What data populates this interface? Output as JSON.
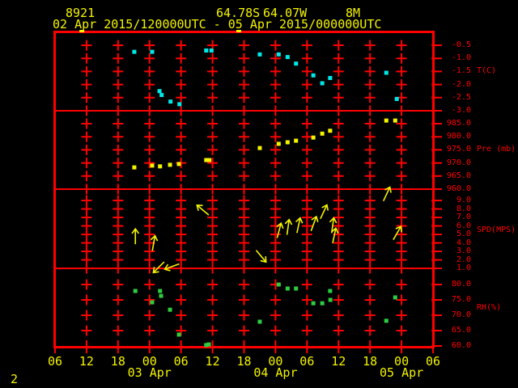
{
  "header": {
    "station_id": "8921",
    "latitude": "64.78S",
    "longitude": "64.07W",
    "elevation": "8M",
    "time_range": "02 Apr 2015/120000UTC - 05 Apr 2015/000000UTC"
  },
  "footer": {
    "page_number": "2"
  },
  "colors": {
    "frame": "#ff0000",
    "label": "#ff0000",
    "header_text": "#f4f400",
    "temp": "#00e8e8",
    "pressure": "#f4f400",
    "wind": "#f4f400",
    "rh": "#2ecc40"
  },
  "x_axis": {
    "tick_labels": [
      "06",
      "12",
      "18",
      "00",
      "06",
      "12",
      "18",
      "00",
      "06",
      "12",
      "18",
      "00",
      "06"
    ],
    "day_labels": [
      {
        "label": "03 Apr",
        "tick_index": 3
      },
      {
        "label": "04 Apr",
        "tick_index": 7
      },
      {
        "label": "05 Apr",
        "tick_index": 11
      }
    ],
    "hours_span": 72
  },
  "top_edge_marks": [
    5.1,
    35.0
  ],
  "chart_data": [
    {
      "type": "scatter",
      "name": "temperature",
      "ylabel": "T(C)",
      "ylabel_row": 2,
      "yticks": [
        -0.5,
        -1.0,
        -1.5,
        -2.0,
        -2.5,
        -3.0
      ],
      "color_key": "temp",
      "points": [
        {
          "t": 15.1,
          "v": -0.75
        },
        {
          "t": 18.5,
          "v": -0.75
        },
        {
          "t": 19.9,
          "v": -2.25
        },
        {
          "t": 20.3,
          "v": -2.4
        },
        {
          "t": 22.0,
          "v": -2.65
        },
        {
          "t": 23.7,
          "v": -2.75
        },
        {
          "t": 28.8,
          "v": -0.7
        },
        {
          "t": 29.8,
          "v": -0.7
        },
        {
          "t": 39.0,
          "v": -0.85
        },
        {
          "t": 42.6,
          "v": -0.85
        },
        {
          "t": 44.3,
          "v": -0.95
        },
        {
          "t": 45.9,
          "v": -1.2
        },
        {
          "t": 49.2,
          "v": -1.65
        },
        {
          "t": 50.9,
          "v": -1.95
        },
        {
          "t": 52.4,
          "v": -1.75
        },
        {
          "t": 63.1,
          "v": -1.55
        },
        {
          "t": 65.1,
          "v": -2.55
        }
      ]
    },
    {
      "type": "scatter",
      "name": "pressure",
      "ylabel": "Pre (mb)",
      "ylabel_row": 2,
      "yticks": [
        985.0,
        980.0,
        975.0,
        970.0,
        965.0,
        960.0
      ],
      "color_key": "pressure",
      "points": [
        {
          "t": 15.1,
          "v": 968.3
        },
        {
          "t": 18.5,
          "v": 969.0
        },
        {
          "t": 20.0,
          "v": 968.7
        },
        {
          "t": 21.9,
          "v": 969.3
        },
        {
          "t": 23.6,
          "v": 969.6
        },
        {
          "t": 28.8,
          "v": 971.1
        },
        {
          "t": 29.4,
          "v": 971.1
        },
        {
          "t": 39.0,
          "v": 975.7
        },
        {
          "t": 42.6,
          "v": 977.3
        },
        {
          "t": 44.3,
          "v": 977.9
        },
        {
          "t": 45.9,
          "v": 978.5
        },
        {
          "t": 49.2,
          "v": 979.7
        },
        {
          "t": 50.9,
          "v": 981.2
        },
        {
          "t": 52.4,
          "v": 982.3
        },
        {
          "t": 63.1,
          "v": 986.2
        },
        {
          "t": 64.8,
          "v": 986.2
        }
      ]
    },
    {
      "type": "wind",
      "name": "wind",
      "ylabel": "SPD(MPS)",
      "ylabel_row": 3.5,
      "yticks": [
        9.0,
        8.0,
        7.0,
        6.0,
        5.0,
        4.0,
        3.0,
        2.0,
        1.0
      ],
      "color_key": "wind",
      "points": [
        {
          "t": 15.3,
          "v": 4.8,
          "dir": 0
        },
        {
          "t": 18.8,
          "v": 4.0,
          "dir": 10
        },
        {
          "t": 19.7,
          "v": 1.1,
          "dir": 225
        },
        {
          "t": 22.2,
          "v": 1.2,
          "dir": 250
        },
        {
          "t": 28.1,
          "v": 7.9,
          "dir": 310
        },
        {
          "t": 39.3,
          "v": 2.4,
          "dir": 140
        },
        {
          "t": 42.7,
          "v": 5.5,
          "dir": 15
        },
        {
          "t": 44.4,
          "v": 5.9,
          "dir": 8
        },
        {
          "t": 46.4,
          "v": 6.1,
          "dir": 12
        },
        {
          "t": 49.3,
          "v": 6.3,
          "dir": 20
        },
        {
          "t": 51.2,
          "v": 7.7,
          "dir": 25
        },
        {
          "t": 52.9,
          "v": 6.1,
          "dir": 8
        },
        {
          "t": 53.2,
          "v": 4.9,
          "dir": 12
        },
        {
          "t": 63.2,
          "v": 9.8,
          "dir": 25
        },
        {
          "t": 65.2,
          "v": 5.2,
          "dir": 30
        }
      ]
    },
    {
      "type": "scatter",
      "name": "humidity",
      "ylabel": "RH(%)",
      "ylabel_row": 1.5,
      "yticks": [
        80.0,
        75.0,
        70.0,
        65.0,
        60.0
      ],
      "color_key": "rh",
      "points": [
        {
          "t": 15.3,
          "v": 77.9
        },
        {
          "t": 18.5,
          "v": 74.2
        },
        {
          "t": 20.0,
          "v": 77.9
        },
        {
          "t": 20.2,
          "v": 76.3
        },
        {
          "t": 21.9,
          "v": 71.8
        },
        {
          "t": 23.6,
          "v": 63.7
        },
        {
          "t": 28.8,
          "v": 60.3
        },
        {
          "t": 29.3,
          "v": 60.5
        },
        {
          "t": 39.0,
          "v": 67.9
        },
        {
          "t": 42.6,
          "v": 80.0
        },
        {
          "t": 44.3,
          "v": 78.7
        },
        {
          "t": 45.9,
          "v": 78.7
        },
        {
          "t": 49.2,
          "v": 73.9
        },
        {
          "t": 50.9,
          "v": 73.9
        },
        {
          "t": 52.4,
          "v": 77.9
        },
        {
          "t": 52.45,
          "v": 75.0
        },
        {
          "t": 63.1,
          "v": 68.2
        },
        {
          "t": 64.8,
          "v": 75.8
        }
      ]
    }
  ]
}
